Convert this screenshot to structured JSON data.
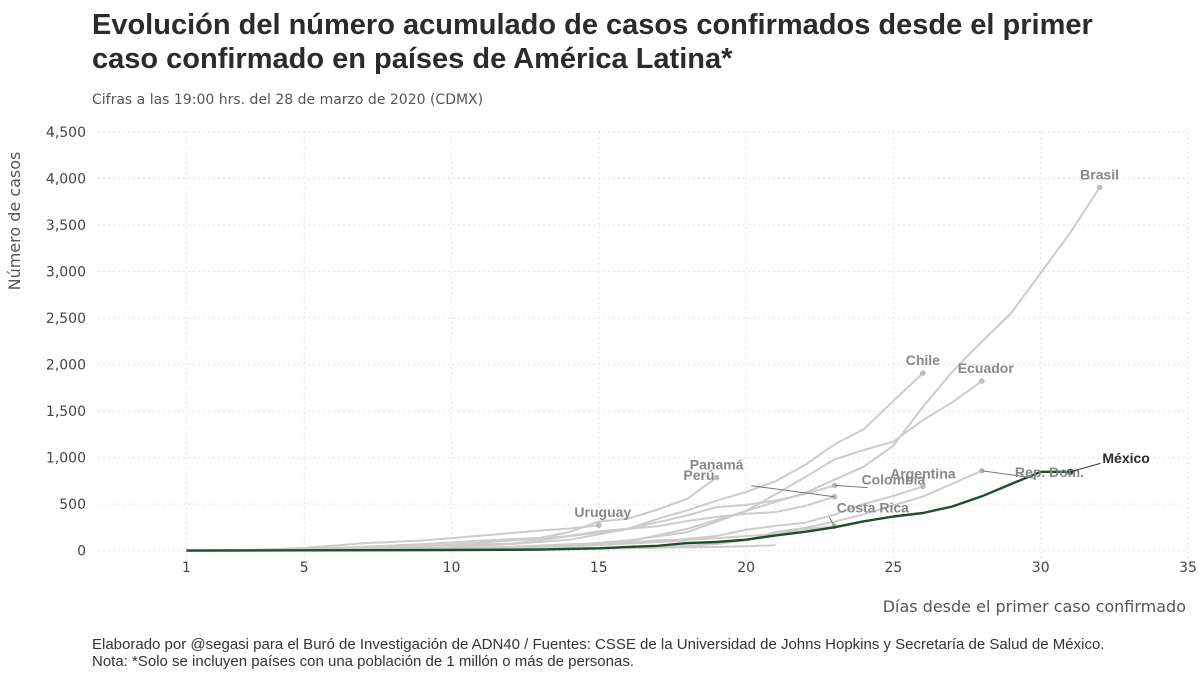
{
  "chart_data": {
    "type": "line",
    "title": "Evolución del número acumulado de casos confirmados desde el primer caso confirmado en países de América Latina*",
    "subtitle": "Cifras a las 19:00 hrs. del 28 de marzo de 2020 (CDMX)",
    "xlabel": "Días desde el primer caso confirmado",
    "ylabel": "Número de casos",
    "xlim": [
      -2,
      35
    ],
    "ylim": [
      -100,
      4500
    ],
    "x_ticks": [
      1,
      5,
      10,
      15,
      20,
      25,
      30,
      35
    ],
    "y_ticks": [
      0,
      500,
      1000,
      1500,
      2000,
      2500,
      3000,
      3500,
      4000,
      4500
    ],
    "y_tick_labels": [
      "0",
      "500",
      "1,000",
      "1,500",
      "2,000",
      "2,500",
      "3,000",
      "3,500",
      "4,000",
      "4,500"
    ],
    "grid": true,
    "colors": {
      "highlight": "#1f4d2f",
      "others": "#cccccc",
      "others_label": "#888888"
    },
    "highlight_series": "México",
    "series": [
      {
        "name": "Brasil",
        "x": [
          1,
          5,
          8,
          10,
          12,
          14,
          16,
          18,
          20,
          22,
          24,
          25,
          26,
          27,
          28,
          29,
          30,
          31,
          32
        ],
        "values": [
          1,
          2,
          8,
          20,
          25,
          52,
          98,
          234,
          428,
          621,
          904,
          1128,
          1546,
          1924,
          2247,
          2554,
          2985,
          3417,
          3904
        ]
      },
      {
        "name": "Chile",
        "x": [
          1,
          4,
          7,
          10,
          12,
          14,
          16,
          17,
          18,
          19,
          20,
          21,
          22,
          23,
          24,
          25,
          26
        ],
        "values": [
          1,
          5,
          23,
          61,
          75,
          155,
          238,
          342,
          434,
          537,
          632,
          746,
          922,
          1142,
          1306,
          1610,
          1909
        ]
      },
      {
        "name": "Ecuador",
        "x": [
          1,
          5,
          8,
          10,
          12,
          14,
          16,
          18,
          20,
          22,
          23,
          24,
          25,
          26,
          27,
          28
        ],
        "values": [
          1,
          7,
          14,
          17,
          28,
          58,
          111,
          199,
          426,
          789,
          981,
          1082,
          1173,
          1403,
          1595,
          1823
        ]
      },
      {
        "name": "Panamá",
        "x": [
          1,
          4,
          7,
          9,
          11,
          13,
          14,
          15,
          16,
          17,
          18,
          19
        ],
        "values": [
          1,
          8,
          43,
          69,
          109,
          137,
          200,
          313,
          345,
          443,
          558,
          786
        ]
      },
      {
        "name": "Perú",
        "x": [
          1,
          5,
          8,
          10,
          12,
          14,
          16,
          17,
          18,
          19,
          20,
          21,
          22,
          23
        ],
        "values": [
          1,
          7,
          15,
          38,
          71,
          117,
          234,
          263,
          318,
          363,
          395,
          416,
          480,
          580
        ]
      },
      {
        "name": "Colombia",
        "x": [
          1,
          4,
          6,
          8,
          10,
          12,
          14,
          15,
          16,
          17,
          18,
          19,
          20,
          21,
          22,
          23
        ],
        "values": [
          1,
          3,
          9,
          24,
          65,
          108,
          158,
          210,
          235,
          306,
          378,
          470,
          491,
          539,
          608,
          702
        ]
      },
      {
        "name": "Argentina",
        "x": [
          1,
          5,
          8,
          10,
          12,
          14,
          16,
          17,
          18,
          19,
          20,
          21,
          22,
          23,
          24,
          25,
          26
        ],
        "values": [
          1,
          2,
          12,
          19,
          31,
          45,
          79,
          97,
          128,
          158,
          225,
          266,
          301,
          387,
          502,
          589,
          690
        ]
      },
      {
        "name": "Rep. Dom.",
        "x": [
          1,
          5,
          9,
          13,
          15,
          17,
          19,
          20,
          21,
          22,
          23,
          24,
          25,
          26,
          27,
          28
        ],
        "values": [
          1,
          2,
          5,
          11,
          21,
          34,
          72,
          112,
          202,
          245,
          312,
          392,
          488,
          581,
          719,
          859
        ]
      },
      {
        "name": "Uruguay",
        "x": [
          1,
          3,
          5,
          7,
          8,
          9,
          10,
          11,
          12,
          13,
          14,
          15
        ],
        "values": [
          4,
          8,
          29,
          79,
          94,
          110,
          135,
          162,
          189,
          217,
          238,
          274
        ]
      },
      {
        "name": "Costa Rica",
        "x": [
          1,
          4,
          7,
          10,
          12,
          14,
          16,
          17,
          18,
          19,
          20,
          21,
          22,
          23
        ],
        "values": [
          1,
          9,
          23,
          26,
          41,
          69,
          87,
          113,
          117,
          134,
          158,
          177,
          231,
          263
        ]
      },
      {
        "name": "",
        "x": [
          1,
          4,
          7,
          10,
          13,
          16,
          19,
          21
        ],
        "values": [
          1,
          3,
          9,
          15,
          25,
          30,
          40,
          58
        ]
      },
      {
        "name": "",
        "x": [
          1,
          5,
          9,
          12,
          15,
          18
        ],
        "values": [
          1,
          5,
          10,
          30,
          60,
          110
        ]
      },
      {
        "name": "México",
        "x": [
          1,
          5,
          10,
          13,
          15,
          16,
          17,
          18,
          19,
          20,
          21,
          22,
          23,
          24,
          25,
          26,
          27,
          28,
          29,
          30,
          31
        ],
        "values": [
          1,
          4,
          7,
          12,
          26,
          41,
          53,
          82,
          93,
          118,
          164,
          203,
          251,
          316,
          367,
          405,
          475,
          585,
          717,
          848,
          848
        ]
      }
    ],
    "labels": {
      "Brasil": "Brasil",
      "Chile": "Chile",
      "Ecuador": "Ecuador",
      "Panamá": "Panamá",
      "Perú": "Perú",
      "Colombia": "Colombia",
      "Argentina": "Argentina",
      "Rep. Dom.": "Rep. Dom.",
      "Uruguay": "Uruguay",
      "Costa Rica": "Costa Rica",
      "México": "México"
    }
  },
  "caption": {
    "line1": "Elaborado por @segasi para el Buró de Investigación de ADN40 / Fuentes: CSSE de la Universidad de Johns Hopkins y Secretaría de Salud de México.",
    "line2": "Nota: *Solo se incluyen países con una población de 1 millón o más de personas."
  }
}
